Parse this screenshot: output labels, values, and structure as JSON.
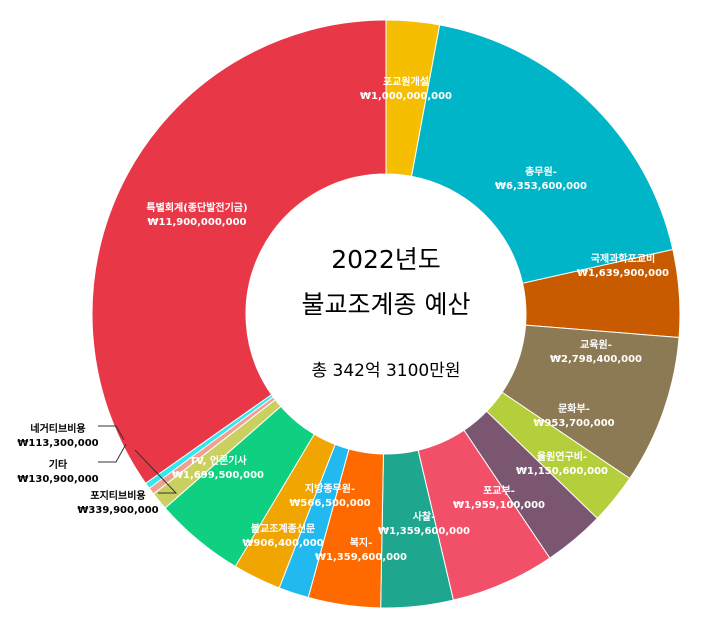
{
  "chart_data": {
    "type": "pie",
    "title_line1": "2022년도",
    "title_line2": "불교조계종 예산",
    "total_label": "총 342억 3100만원",
    "slices": [
      {
        "name": "포교원개설",
        "value_label": "₩1,000,000,000",
        "value": 1000000000,
        "color": "#F6BE00"
      },
      {
        "name": "총무원-",
        "value_label": "₩6,353,600,000",
        "value": 6353600000,
        "color": "#00B5C8"
      },
      {
        "name": "국제과학포교비",
        "value_label": "₩1,639,900,000",
        "value": 1639900000,
        "color": "#C85A00"
      },
      {
        "name": "교육원-",
        "value_label": "₩2,798,400,000",
        "value": 2798400000,
        "color": "#8C7A55"
      },
      {
        "name": "문화부-",
        "value_label": "₩953,700,000",
        "value": 953700000,
        "color": "#B5CF3C"
      },
      {
        "name": "율원연구비-",
        "value_label": "₩1,150,600,000",
        "value": 1150600000,
        "color": "#7B5670"
      },
      {
        "name": "포교부-",
        "value_label": "₩1,959,100,000",
        "value": 1959100000,
        "color": "#F15068"
      },
      {
        "name": "사찰-",
        "value_label": "₩1,359,600,000",
        "value": 1359600000,
        "color": "#1FA68E"
      },
      {
        "name": "복지-",
        "value_label": "₩1,359,600,000",
        "value": 1359600000,
        "color": "#FF6A00"
      },
      {
        "name": "지방종무원-",
        "value_label": "₩566,500,000",
        "value": 566500000,
        "color": "#22B8F0"
      },
      {
        "name": "불교조계종신문",
        "value_label": "₩906,400,000",
        "value": 906400000,
        "color": "#F0A500"
      },
      {
        "name": "TV, 언론기사",
        "value_label": "₩1,699,500,000",
        "value": 1699500000,
        "color": "#0FCF80"
      },
      {
        "name": "포지티브비용",
        "value_label": "₩339,900,000",
        "value": 339900000,
        "color": "#C9D060"
      },
      {
        "name": "기타",
        "value_label": "₩130,900,000",
        "value": 130900000,
        "color": "#F0A090"
      },
      {
        "name": "네거티브비용",
        "value_label": "₩113,300,000",
        "value": 113300000,
        "color": "#30E8F0"
      },
      {
        "name": "특별회계(종단발전기금)",
        "value_label": "₩11,900,000,000",
        "value": 11900000000,
        "color": "#E83848"
      }
    ]
  }
}
